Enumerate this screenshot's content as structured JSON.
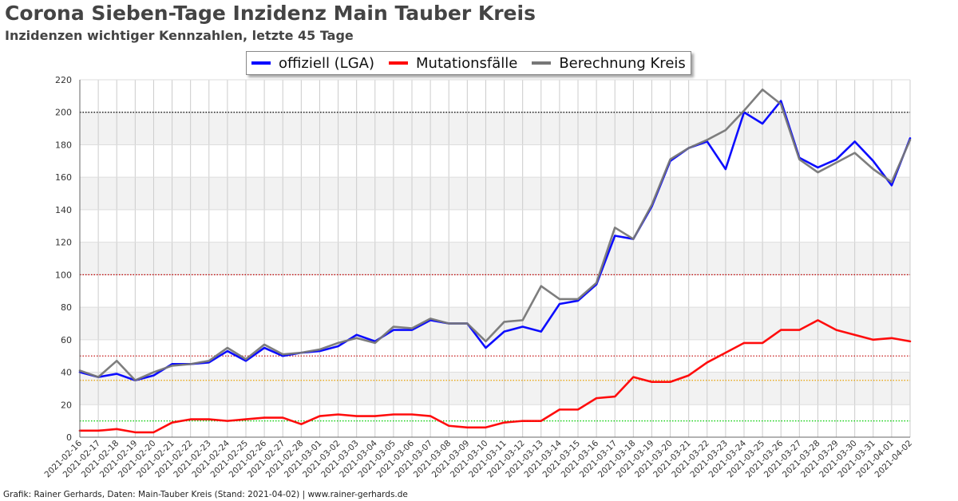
{
  "header": {
    "title": "Corona Sieben-Tage Inzidenz Main Tauber Kreis",
    "subtitle": "Inzidenzen wichtiger Kennzahlen, letzte 45 Tage"
  },
  "footer": {
    "text": "Grafik: Rainer Gerhards, Daten: Main-Tauber Kreis (Stand: 2021-04-02) | www.rainer-gerhards.de"
  },
  "chart_data": {
    "type": "line",
    "title": "",
    "xlabel": "",
    "ylabel": "",
    "ylim": [
      0,
      220
    ],
    "yticks": [
      0,
      20,
      40,
      60,
      80,
      100,
      120,
      140,
      160,
      180,
      200,
      220
    ],
    "grid": true,
    "legend_position": "top-center",
    "x": [
      "2021-02-16",
      "2021-02-17",
      "2021-02-18",
      "2021-02-19",
      "2021-02-20",
      "2021-02-21",
      "2021-02-22",
      "2021-02-23",
      "2021-02-24",
      "2021-02-25",
      "2021-02-26",
      "2021-02-27",
      "2021-02-28",
      "2021-03-01",
      "2021-03-02",
      "2021-03-03",
      "2021-03-04",
      "2021-03-05",
      "2021-03-06",
      "2021-03-07",
      "2021-03-08",
      "2021-03-09",
      "2021-03-10",
      "2021-03-11",
      "2021-03-12",
      "2021-03-13",
      "2021-03-14",
      "2021-03-15",
      "2021-03-16",
      "2021-03-17",
      "2021-03-18",
      "2021-03-19",
      "2021-03-20",
      "2021-03-21",
      "2021-03-22",
      "2021-03-23",
      "2021-03-24",
      "2021-03-25",
      "2021-03-26",
      "2021-03-27",
      "2021-03-28",
      "2021-03-29",
      "2021-03-30",
      "2021-03-31",
      "2021-04-01",
      "2021-04-02"
    ],
    "series": [
      {
        "name": "offiziell (LGA)",
        "color": "#0000ff",
        "values": [
          40,
          37,
          39,
          35,
          38,
          45,
          45,
          46,
          53,
          47,
          55,
          50,
          52,
          53,
          56,
          63,
          59,
          66,
          66,
          72,
          70,
          70,
          55,
          65,
          68,
          65,
          82,
          84,
          94,
          124,
          122,
          142,
          170,
          178,
          182,
          165,
          200,
          193,
          207,
          172,
          166,
          171,
          182,
          170,
          155,
          184
        ]
      },
      {
        "name": "Mutationsfälle",
        "color": "#ff0000",
        "values": [
          4,
          4,
          5,
          3,
          3,
          9,
          11,
          11,
          10,
          11,
          12,
          12,
          8,
          13,
          14,
          13,
          13,
          14,
          14,
          13,
          7,
          6,
          6,
          9,
          10,
          10,
          17,
          17,
          24,
          25,
          37,
          34,
          34,
          38,
          46,
          52,
          58,
          58,
          66,
          66,
          72,
          66,
          63,
          60,
          61,
          59
        ]
      },
      {
        "name": "Berechnung Kreis",
        "color": "#777777",
        "values": [
          41,
          37,
          47,
          35,
          40,
          44,
          45,
          47,
          55,
          48,
          57,
          51,
          52,
          54,
          58,
          61,
          58,
          68,
          67,
          73,
          70,
          70,
          59,
          71,
          72,
          93,
          85,
          85,
          95,
          129,
          122,
          143,
          171,
          178,
          183,
          189,
          201,
          214,
          205,
          171,
          163,
          169,
          175,
          165,
          157,
          183
        ]
      }
    ],
    "reference_lines": [
      {
        "value": 200,
        "color": "#000000"
      },
      {
        "value": 100,
        "color": "#c00000"
      },
      {
        "value": 50,
        "color": "#c00000"
      },
      {
        "value": 35,
        "color": "#e8a000"
      },
      {
        "value": 10,
        "color": "#00cc00"
      }
    ],
    "band_color": "#f2f2f2"
  }
}
